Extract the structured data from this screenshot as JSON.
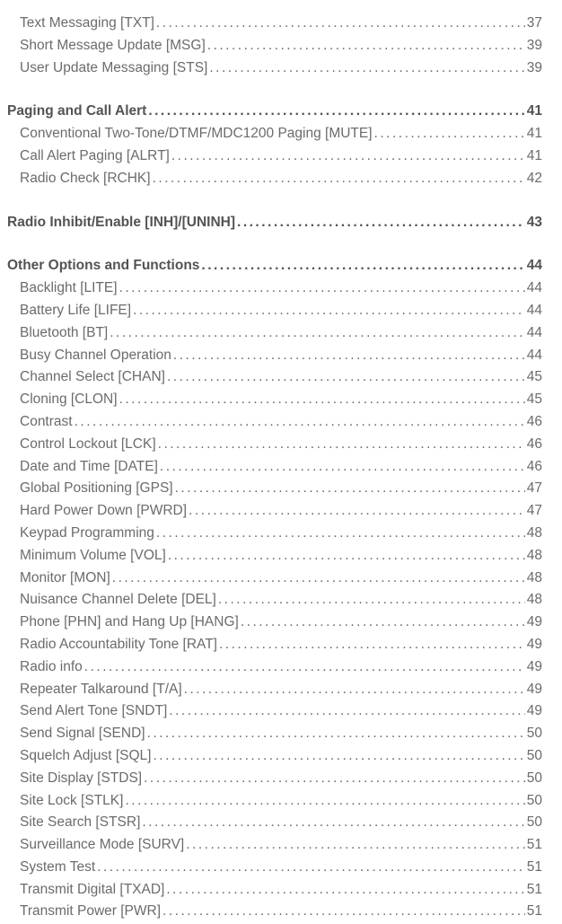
{
  "dots": "........................................................................................................................",
  "entries": [
    {
      "type": "item",
      "label": "Text Messaging [TXT]",
      "page": "37"
    },
    {
      "type": "item",
      "label": "Short Message Update [MSG]",
      "page": "39"
    },
    {
      "type": "item",
      "label": "User Update Messaging [STS]",
      "page": "39"
    },
    {
      "type": "gap"
    },
    {
      "type": "heading",
      "label": "Paging and Call Alert ",
      "page": "41"
    },
    {
      "type": "item",
      "label": "Conventional Two-Tone/DTMF/MDC1200 Paging [MUTE] ",
      "page": "41"
    },
    {
      "type": "item",
      "label": "Call Alert Paging [ALRT] ",
      "page": "41"
    },
    {
      "type": "item",
      "label": "Radio Check [RCHK] ",
      "page": "42"
    },
    {
      "type": "gap"
    },
    {
      "type": "heading",
      "label": "Radio Inhibit/Enable [INH]/[UNINH]",
      "page": "43"
    },
    {
      "type": "gap"
    },
    {
      "type": "heading",
      "label": "Other Options and Functions ",
      "page": "44"
    },
    {
      "type": "item",
      "label": "Backlight [LITE]",
      "page": "44"
    },
    {
      "type": "item",
      "label": "Battery Life [LIFE] ",
      "page": "44"
    },
    {
      "type": "item",
      "label": "Bluetooth [BT] ",
      "page": "44"
    },
    {
      "type": "item",
      "label": "Busy Channel Operation",
      "page": "44"
    },
    {
      "type": "item",
      "label": "Channel Select [CHAN] ",
      "page": "45"
    },
    {
      "type": "item",
      "label": "Cloning [CLON]",
      "page": "45"
    },
    {
      "type": "item",
      "label": "Contrast",
      "page": "46"
    },
    {
      "type": "item",
      "label": "Control Lockout [LCK]",
      "page": "46"
    },
    {
      "type": "item",
      "label": "Date and Time [DATE] ",
      "page": "46"
    },
    {
      "type": "item",
      "label": "Global Positioning [GPS]",
      "page": "47"
    },
    {
      "type": "item",
      "label": "Hard Power Down [PWRD]",
      "page": "47"
    },
    {
      "type": "item",
      "label": "Keypad Programming ",
      "page": "48"
    },
    {
      "type": "item",
      "label": "Minimum Volume [VOL] ",
      "page": "48"
    },
    {
      "type": "item",
      "label": "Monitor [MON]",
      "page": "48"
    },
    {
      "type": "item",
      "label": "Nuisance Channel Delete [DEL] ",
      "page": "48"
    },
    {
      "type": "item",
      "label": "Phone [PHN] and Hang Up [HANG] ",
      "page": "49"
    },
    {
      "type": "item",
      "label": "Radio Accountability Tone [RAT] ",
      "page": "49"
    },
    {
      "type": "item",
      "label": "Radio info ",
      "page": "49"
    },
    {
      "type": "item",
      "label": "Repeater Talkaround [T/A] ",
      "page": "49"
    },
    {
      "type": "item",
      "label": "Send Alert Tone [SNDT] ",
      "page": "49"
    },
    {
      "type": "item",
      "label": "Send Signal [SEND]",
      "page": "50"
    },
    {
      "type": "item",
      "label": "Squelch Adjust [SQL]",
      "page": "50"
    },
    {
      "type": "item",
      "label": "Site Display [STDS]",
      "page": "50"
    },
    {
      "type": "item",
      "label": "Site Lock [STLK] ",
      "page": "50"
    },
    {
      "type": "item",
      "label": "Site Search [STSR]",
      "page": "50"
    },
    {
      "type": "item",
      "label": "Surveillance Mode [SURV] ",
      "page": "51"
    },
    {
      "type": "item",
      "label": "System Test",
      "page": "51"
    },
    {
      "type": "item",
      "label": "Transmit Digital [TXAD] ",
      "page": "51"
    },
    {
      "type": "item",
      "label": "Transmit Power [PWR]",
      "page": "51"
    }
  ]
}
